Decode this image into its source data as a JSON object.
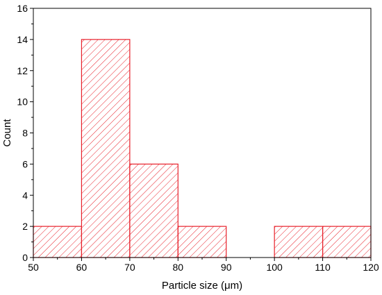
{
  "chart_data": {
    "type": "bar",
    "bins": [
      {
        "x0": 50,
        "x1": 60,
        "count": 2
      },
      {
        "x0": 60,
        "x1": 70,
        "count": 14
      },
      {
        "x0": 70,
        "x1": 80,
        "count": 6
      },
      {
        "x0": 80,
        "x1": 90,
        "count": 2
      },
      {
        "x0": 90,
        "x1": 100,
        "count": 0
      },
      {
        "x0": 100,
        "x1": 110,
        "count": 2
      },
      {
        "x0": 110,
        "x1": 120,
        "count": 2
      }
    ],
    "xlabel": "Particle size (μm)",
    "ylabel": "Count",
    "xlim": [
      50,
      120
    ],
    "ylim": [
      0,
      16
    ],
    "xticks": [
      "50",
      "60",
      "70",
      "80",
      "90",
      "100",
      "110",
      "120"
    ],
    "yticks": [
      "0",
      "2",
      "4",
      "6",
      "8",
      "10",
      "12",
      "14",
      "16"
    ],
    "grid": false,
    "bar_color": "#e8202a",
    "fill_pattern": "diagonal-hatch"
  }
}
